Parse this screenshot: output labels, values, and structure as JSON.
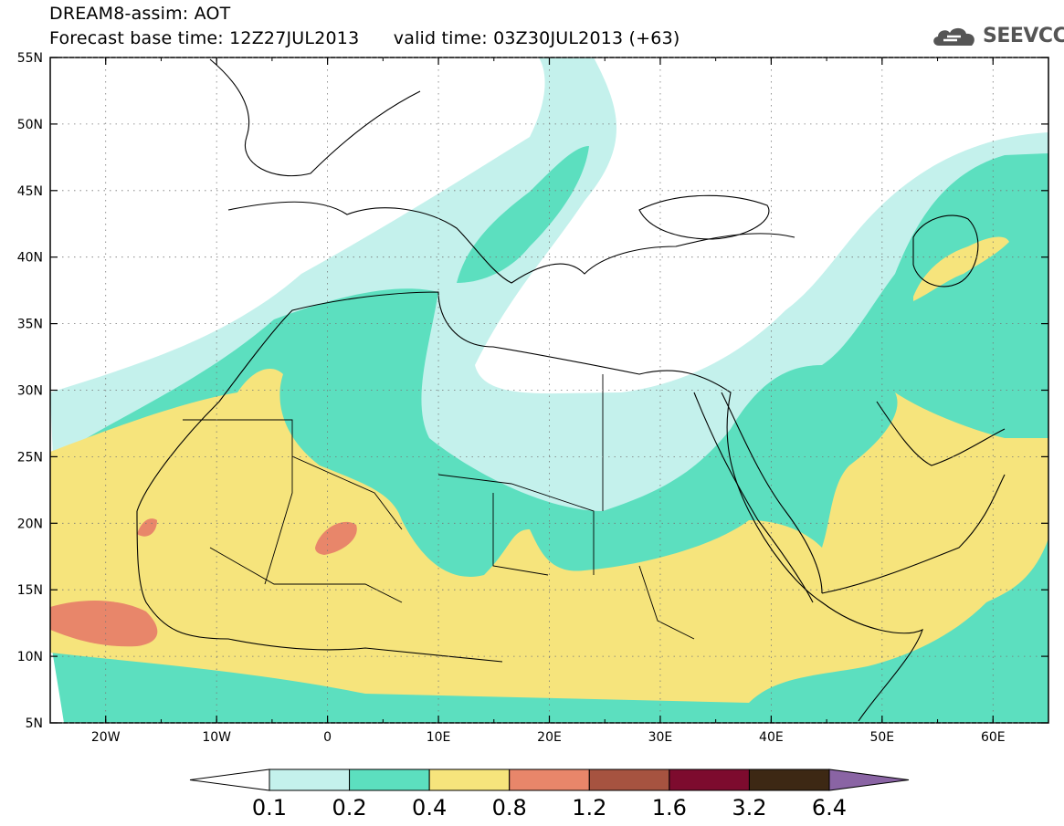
{
  "header": {
    "title_line1": "DREAM8-assim: AOT",
    "title_line2": "Forecast base time: 12Z27JUL2013      valid time: 03Z30JUL2013 (+63)",
    "logo_text": "SEEVCCC"
  },
  "map": {
    "projection": "equirectangular",
    "lon_range": [
      -25,
      65
    ],
    "lat_range": [
      5,
      55
    ],
    "lon_ticks": [
      "20W",
      "10W",
      "0",
      "10E",
      "20E",
      "30E",
      "40E",
      "50E",
      "60E"
    ],
    "lat_ticks": [
      "55N",
      "50N",
      "45N",
      "40N",
      "35N",
      "30N",
      "25N",
      "20N",
      "15N",
      "10N",
      "5N"
    ],
    "grid": "dotted",
    "variable": "AOT"
  },
  "colorbar": {
    "levels": [
      "0.1",
      "0.2",
      "0.4",
      "0.8",
      "1.2",
      "1.6",
      "3.2",
      "6.4"
    ],
    "colors": [
      "#c4f1ec",
      "#5cdfbf",
      "#f6e47c",
      "#e8866a",
      "#a65340",
      "#7d0b2e",
      "#3d2814",
      "#8a64a4"
    ],
    "below_color": "#ffffff"
  }
}
